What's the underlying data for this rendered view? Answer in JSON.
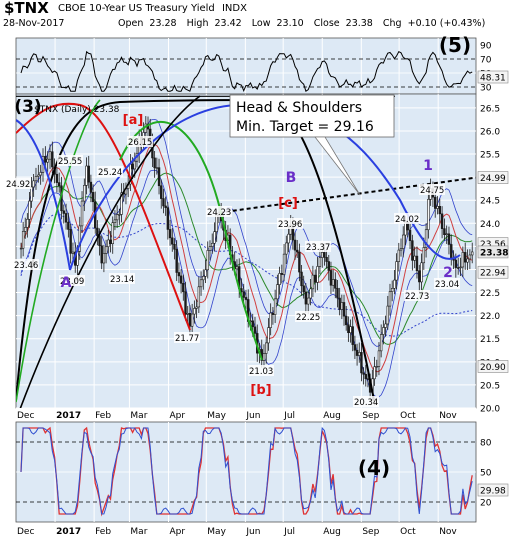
{
  "header": {
    "symbol": "$TNX",
    "title": "CBOE 10-Year US Treasury Yield",
    "exchange": "INDX",
    "date": "28-Nov-2017",
    "open_label": "Open",
    "open": "23.28",
    "high_label": "High",
    "high": "23.42",
    "low_label": "Low",
    "low": "23.10",
    "close_label": "Close",
    "close": "23.38",
    "chg_label": "Chg",
    "chg": "+0.10 (+0.43%)"
  },
  "colors": {
    "panel_bg": "#dde9f5",
    "grid": "#ffffff",
    "border": "#333333",
    "price": "#1a1a1a",
    "blue": "#2a3fe0",
    "black": "#000000",
    "green": "#22aa22",
    "red": "#dd1111",
    "purple": "#6a2ec8",
    "ma_red": "#d04040",
    "ma_green": "#2c8a2c",
    "ma_dotted": "#3344cc",
    "bb": "#3344cc",
    "stoch_red": "#e03333",
    "stoch_blue": "#3050d0",
    "rsi": "#000000",
    "label_box_bg": "#ffffff"
  },
  "months": [
    "Dec",
    "2017",
    "Feb",
    "Mar",
    "Apr",
    "May",
    "Jun",
    "Jul",
    "Aug",
    "Sep",
    "Oct",
    "Nov"
  ],
  "rsi_panel": {
    "ticks": [
      "90",
      "70",
      "50",
      "30"
    ],
    "tag_upper": "70",
    "value": "48.31",
    "wave_label": "(5)"
  },
  "price_panel": {
    "legend": "$TNX (Daily) 23.38",
    "y_ticks": [
      "26.5",
      "26.0",
      "25.5",
      "25.0",
      "24.5",
      "24.0",
      "23.5",
      "23.0",
      "22.5",
      "22.0",
      "21.5",
      "21.0",
      "20.5",
      "20.0"
    ],
    "right_tags": [
      "24.99",
      "23.56",
      "23.38",
      "22.94",
      "20.90"
    ],
    "callout_line1": "Head & Shoulders",
    "callout_line2": "Min. Target = 29.16",
    "price_labels": [
      "24.92",
      "25.55",
      "26.15",
      "25.24",
      "23.46",
      "23.09",
      "23.14",
      "21.77",
      "24.23",
      "23.96",
      "23.37",
      "22.25",
      "21.03",
      "20.34",
      "24.02",
      "24.75",
      "22.73",
      "23.04"
    ],
    "wave_labels": [
      "(3)",
      "[a]",
      "B",
      "[c]",
      "A",
      "[b]",
      "C",
      "1",
      "2"
    ]
  },
  "stoch_panel": {
    "ticks": [
      "80",
      "50",
      "20"
    ],
    "value": "29.98",
    "wave_label": "(4)"
  },
  "chart_data": {
    "type": "candlestick",
    "title": "CBOE 10-Year US Treasury Yield",
    "ylabel": "",
    "ylim": [
      20.0,
      26.8
    ],
    "x_categories": [
      "Dec",
      "2017",
      "Feb",
      "Mar",
      "Apr",
      "May",
      "Jun",
      "Jul",
      "Aug",
      "Sep",
      "Oct",
      "Nov"
    ],
    "pivot_points": [
      {
        "date": "2016-12-05",
        "y": 23.46
      },
      {
        "date": "2016-12-15",
        "y": 24.92
      },
      {
        "date": "2016-12-28",
        "y": 25.55
      },
      {
        "date": "2017-01-17",
        "y": 23.09
      },
      {
        "date": "2017-01-26",
        "y": 25.24
      },
      {
        "date": "2017-02-07",
        "y": 23.14
      },
      {
        "date": "2017-03-14",
        "y": 26.15
      },
      {
        "date": "2017-04-18",
        "y": 21.77
      },
      {
        "date": "2017-05-11",
        "y": 24.23
      },
      {
        "date": "2017-06-14",
        "y": 21.03
      },
      {
        "date": "2017-07-07",
        "y": 23.96
      },
      {
        "date": "2017-07-19",
        "y": 22.25
      },
      {
        "date": "2017-08-01",
        "y": 23.37
      },
      {
        "date": "2017-09-08",
        "y": 20.34
      },
      {
        "date": "2017-10-06",
        "y": 24.02
      },
      {
        "date": "2017-10-17",
        "y": 22.73
      },
      {
        "date": "2017-10-26",
        "y": 24.75
      },
      {
        "date": "2017-11-15",
        "y": 23.04
      },
      {
        "date": "2017-11-28",
        "y": 23.38
      }
    ],
    "last": {
      "open": 23.28,
      "high": 23.42,
      "low": 23.1,
      "close": 23.38
    },
    "moving_averages": {
      "upper_band": 24.99,
      "short_ma": 23.56,
      "mid_ma": 22.94,
      "lower_band": 20.9
    },
    "head_and_shoulders_target": 29.16,
    "rsi_last": 48.31,
    "stochastic_last": 29.98
  }
}
